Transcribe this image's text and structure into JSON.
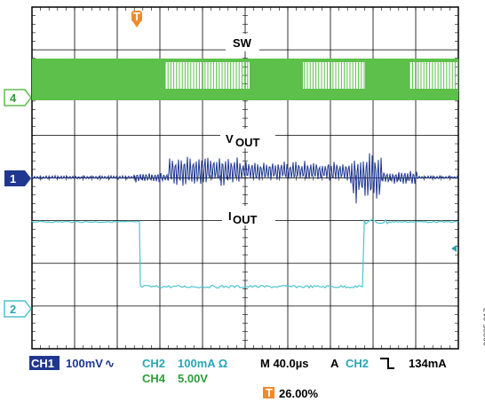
{
  "colors": {
    "ch1": "#1f3790",
    "ch2": "#4fc4d0",
    "ch4": "#5cc04a",
    "trigger": "#f08a2a",
    "grid": "#000000",
    "text_ch": "#1f3790",
    "text_ch2": "#2aa5b4",
    "text_ch4": "#2c9e3a"
  },
  "traces": {
    "sw_label": "SW",
    "vout_label": "V",
    "vout_sub": "OUT",
    "iout_label": "I",
    "iout_sub": "OUT"
  },
  "markers": {
    "ch4": "4",
    "ch1": "1",
    "ch2": "2",
    "trigger": "T"
  },
  "readout": {
    "ch1_tag": "CH1",
    "ch1_scale": "100mV",
    "ch1_coupling": "∿",
    "ch2_tag": "CH2",
    "ch2_scale": "100mA Ω",
    "ch4_tag": "CH4",
    "ch4_scale": "5.00V",
    "timebase": "M 40.0µs",
    "trigger_mode": "A",
    "trigger_source": "CH2",
    "trigger_slope": "⅂",
    "trigger_level": "134mA",
    "trigger_tag": "T",
    "trigger_position": "26.00%"
  },
  "figure_id": "09885-017",
  "chart_data": {
    "type": "line",
    "xlabel": "",
    "ylabel": "",
    "grid": true,
    "series": [
      {
        "name": "SW",
        "values": [
          0,
          1
        ]
      },
      {
        "name": "VOUT",
        "values": [
          0,
          1
        ]
      },
      {
        "name": "IOUT",
        "values": [
          0,
          1
        ]
      }
    ]
  }
}
